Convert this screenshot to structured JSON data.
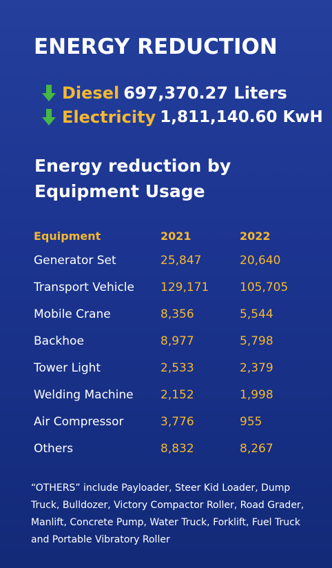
{
  "title": "ENERGY REDUCTION",
  "colors": {
    "accent": "#f5b830",
    "arrow": "#45b845",
    "background": "#1c3591"
  },
  "stats": [
    {
      "icon": "down-arrow-icon",
      "label": "Diesel",
      "value": "697,370.27 Liters"
    },
    {
      "icon": "down-arrow-icon",
      "label": "Electricity",
      "value": "1,811,140.60 KwH"
    }
  ],
  "subtitle": "Energy reduction by Equipment Usage",
  "table": {
    "headers": [
      "Equipment",
      "2021",
      "2022"
    ],
    "rows": [
      [
        "Generator Set",
        "25,847",
        "20,640"
      ],
      [
        "Transport Vehicle",
        "129,171",
        "105,705"
      ],
      [
        "Mobile Crane",
        "8,356",
        "5,544"
      ],
      [
        "Backhoe",
        "8,977",
        "5,798"
      ],
      [
        "Tower Light",
        "2,533",
        "2,379"
      ],
      [
        "Welding Machine",
        "2,152",
        "1,998"
      ],
      [
        "Air Compressor",
        "3,776",
        "955"
      ],
      [
        "Others",
        "8,832",
        "8,267"
      ]
    ]
  },
  "footnote": "“OTHERS” include Payloader, Steer Kid Loader, Dump Truck, Bulldozer, Victory Compactor Roller, Road Grader, Manlift, Concrete Pump, Water Truck, Forklift, Fuel Truck and Portable Vibratory Roller"
}
